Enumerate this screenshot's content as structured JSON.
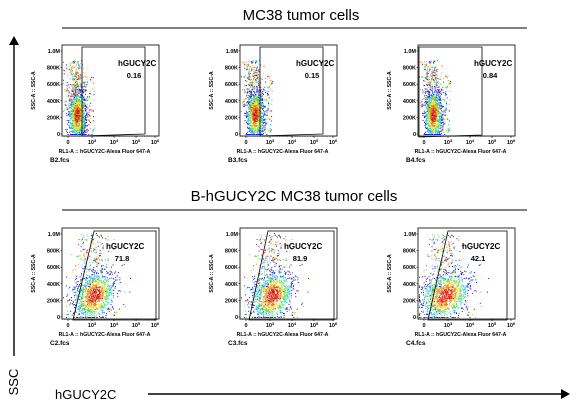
{
  "header": {
    "top_title": "MC38 tumor cells",
    "bottom_title": "B-hGUCY2C MC38 tumor cells"
  },
  "axes": {
    "y_big_label": "SSC",
    "x_big_label": "hGUCY2C"
  },
  "colors": {
    "dot_low": "#1a1ad8",
    "dot_mid": "#22c8e0",
    "dot_high": "#f0e020",
    "dot_peak": "#e02010",
    "gate": "#000000"
  },
  "chart_data": [
    {
      "type": "scatter",
      "file": "B2.fcs",
      "gate_label": "hGUCY2C",
      "gate_percent": "0.16",
      "xlabel": "RL1-A :: hGUCY2C-Alexa Fluor 647-A",
      "ylabel": "SSC-A :: SSC-A",
      "y_ticks": [
        "1.0M",
        "800K",
        "600K",
        "400K",
        "200K",
        "0"
      ],
      "x_ticks": [
        "0",
        "10^3",
        "10^4",
        "10^5",
        "10^6"
      ],
      "population": "negative"
    },
    {
      "type": "scatter",
      "file": "B3.fcs",
      "gate_label": "hGUCY2C",
      "gate_percent": "0.15",
      "xlabel": "RL1-A :: hGUCY2C-Alexa Fluor 647-A",
      "ylabel": "SSC-A :: SSC-A",
      "y_ticks": [
        "1.0M",
        "800K",
        "600K",
        "400K",
        "200K",
        "0"
      ],
      "x_ticks": [
        "0",
        "10^3",
        "10^4",
        "10^5",
        "10^6"
      ],
      "population": "negative"
    },
    {
      "type": "scatter",
      "file": "B4.fcs",
      "gate_label": "hGUCY2C",
      "gate_percent": "0.84",
      "xlabel": "RL1-A :: hGUCY2C-Alexa Fluor 647-A",
      "ylabel": "SSC-A :: SSC-A",
      "y_ticks": [
        "1.0M",
        "800K",
        "600K",
        "400K",
        "200K",
        "0"
      ],
      "x_ticks": [
        "0",
        "10^3",
        "10^4",
        "10^5",
        "10^6"
      ],
      "population": "negative"
    },
    {
      "type": "scatter",
      "file": "C2.fcs",
      "gate_label": "hGUCY2C",
      "gate_percent": "71.8",
      "xlabel": "RL1-A :: hGUCY2C-Alexa Fluor 647-A",
      "ylabel": "SSC-A :: SSC-A",
      "y_ticks": [
        "1.0M",
        "800K",
        "600K",
        "400K",
        "200K",
        "0"
      ],
      "x_ticks": [
        "0",
        "10^3",
        "10^4",
        "10^5",
        "10^6"
      ],
      "population": "positive"
    },
    {
      "type": "scatter",
      "file": "C3.fcs",
      "gate_label": "hGUCY2C",
      "gate_percent": "81.9",
      "xlabel": "RL1-A :: hGUCY2C-Alexa Fluor 647-A",
      "ylabel": "SSC-A :: SSC-A",
      "y_ticks": [
        "1.0M",
        "800K",
        "600K",
        "400K",
        "200K",
        "0"
      ],
      "x_ticks": [
        "0",
        "10^3",
        "10^4",
        "10^5",
        "10^6"
      ],
      "population": "positive"
    },
    {
      "type": "scatter",
      "file": "C4.fcs",
      "gate_label": "hGUCY2C",
      "gate_percent": "42.1",
      "xlabel": "RL1-A :: hGUCY2C-Alexa Fluor 647-A",
      "ylabel": "SSC-A :: SSC-A",
      "y_ticks": [
        "1.0M",
        "800K",
        "600K",
        "400K",
        "200K",
        "0"
      ],
      "x_ticks": [
        "0",
        "10^3",
        "10^4",
        "10^5",
        "10^6"
      ],
      "population": "partial"
    }
  ]
}
